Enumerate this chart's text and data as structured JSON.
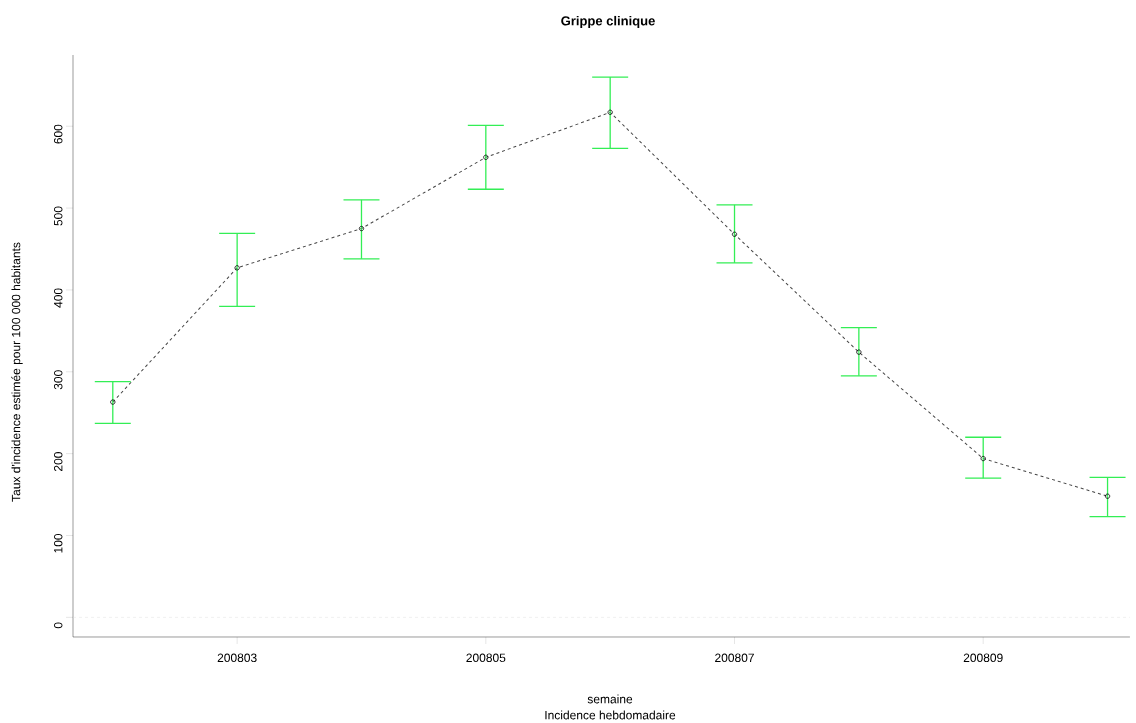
{
  "chart_data": {
    "type": "line",
    "title": "Grippe clinique",
    "subtitle": "Incidence hebdomadaire",
    "xlabel": "semaine",
    "ylabel": "Taux d'incidence estimée pour 100 000 habitants",
    "categories": [
      null,
      "200803",
      null,
      "200805",
      null,
      "200807",
      null,
      "200809",
      null
    ],
    "series": [
      {
        "color": "#444444",
        "values": [
          263,
          427,
          475,
          562,
          617,
          468,
          324,
          194,
          148
        ],
        "errors": [
          [
            237,
            288
          ],
          [
            380,
            469
          ],
          [
            438,
            510
          ],
          [
            523,
            601
          ],
          [
            573,
            660
          ],
          [
            433,
            504
          ],
          [
            295,
            354
          ],
          [
            170,
            220
          ],
          [
            123,
            171
          ]
        ]
      }
    ],
    "ylim": [
      -24,
      687
    ],
    "yticks": [
      0,
      100,
      200,
      300,
      400,
      500,
      600
    ],
    "ref_lines": [
      {
        "axis": "y",
        "value": 0,
        "color": "#d9d9d9",
        "line_style": "dashed"
      }
    ],
    "marker": "circle",
    "line_style": "dashed"
  }
}
